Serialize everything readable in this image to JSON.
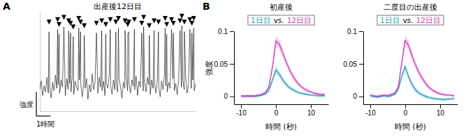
{
  "chart_data": [
    {
      "type": "line",
      "panel_label": "A",
      "title": "出産後12日目",
      "x": [
        0.0,
        0.1,
        0.2,
        0.3,
        0.4,
        0.5,
        0.6,
        0.65,
        0.7,
        0.8,
        0.9,
        1.0,
        1.1,
        1.2,
        1.26,
        1.3,
        1.36,
        1.4,
        1.5,
        1.6,
        1.7,
        1.8,
        1.9,
        2.0,
        2.04,
        2.1,
        2.17,
        2.2,
        2.3,
        2.36,
        2.4,
        2.5,
        2.6,
        2.7,
        2.75,
        2.8,
        2.88,
        2.9,
        3.0,
        3.1,
        3.14,
        3.2,
        3.3,
        3.4,
        3.5,
        3.6,
        3.7,
        3.8,
        3.9,
        4.0,
        4.1,
        4.2,
        4.3,
        4.37,
        4.4,
        4.5,
        4.6,
        4.66,
        4.7,
        4.8,
        4.9,
        4.98,
        5.0,
        5.1,
        5.2,
        5.3,
        5.37,
        5.4,
        5.5,
        5.55,
        5.6,
        5.7,
        5.8,
        5.9,
        6.0,
        6.02,
        6.1,
        6.2,
        6.21,
        6.29,
        6.3,
        6.4,
        6.5,
        6.6,
        6.68,
        6.7,
        6.8,
        6.9,
        7.0,
        7.1,
        7.2,
        7.3,
        7.33,
        7.4,
        7.5,
        7.6,
        7.7,
        7.73,
        7.8,
        7.9,
        8.0,
        8.07,
        8.1,
        8.2,
        8.3,
        8.38,
        8.4,
        8.5,
        8.6,
        8.7,
        8.8,
        8.85,
        8.9,
        8.96,
        9.0,
        9.1,
        9.2,
        9.3,
        9.4,
        9.43,
        9.5,
        9.6,
        9.7,
        9.8,
        9.9,
        10.0,
        10.03,
        10.1,
        10.2,
        10.21,
        10.3,
        10.4,
        10.5,
        10.6,
        10.7,
        10.74,
        10.8,
        10.87,
        10.9,
        11.0
      ],
      "series": [
        {
          "color": "#000000",
          "values": [
            0.38,
            0.45,
            0.33,
            0.41,
            0.36,
            0.48,
            0.35,
            0.86,
            0.4,
            0.31,
            0.44,
            0.37,
            0.5,
            0.39,
            0.88,
            0.42,
            0.84,
            0.35,
            0.46,
            0.4,
            0.9,
            0.33,
            0.47,
            0.38,
            0.87,
            0.43,
            0.85,
            0.36,
            0.49,
            0.82,
            0.34,
            0.45,
            0.4,
            0.37,
            0.89,
            0.46,
            0.86,
            0.41,
            0.32,
            0.44,
            0.83,
            0.39,
            0.47,
            0.3,
            0.42,
            0.36,
            0.51,
            0.38,
            0.44,
            0.85,
            0.35,
            0.48,
            0.4,
            0.87,
            0.37,
            0.45,
            0.33,
            0.84,
            0.43,
            0.39,
            0.5,
            0.88,
            0.41,
            0.34,
            0.46,
            0.38,
            0.86,
            0.42,
            0.36,
            0.89,
            0.47,
            0.4,
            0.31,
            0.44,
            0.39,
            0.87,
            0.48,
            0.37,
            0.84,
            0.86,
            0.43,
            0.35,
            0.46,
            0.41,
            0.88,
            0.38,
            0.49,
            0.33,
            0.45,
            0.4,
            0.85,
            0.37,
            0.9,
            0.44,
            0.36,
            0.48,
            0.42,
            0.83,
            0.34,
            0.46,
            0.39,
            0.87,
            0.43,
            0.35,
            0.47,
            0.86,
            0.4,
            0.32,
            0.45,
            0.38,
            0.5,
            0.89,
            0.41,
            0.84,
            0.36,
            0.44,
            0.39,
            0.88,
            0.47,
            0.85,
            0.37,
            0.43,
            0.34,
            0.46,
            0.87,
            0.4,
            0.91,
            0.45,
            0.38,
            0.86,
            0.49,
            0.35,
            0.42,
            0.88,
            0.39,
            0.85,
            0.46,
            0.89,
            0.37,
            0.43
          ]
        },
        {
          "type": "scatter",
          "marker": "triangle",
          "color": "#000000",
          "x": [
            0.65,
            1.26,
            1.36,
            1.7,
            2.04,
            2.17,
            2.36,
            2.75,
            2.88,
            3.14,
            4.0,
            4.37,
            4.66,
            4.98,
            5.37,
            5.55,
            6.02,
            6.21,
            6.29,
            6.68,
            7.2,
            7.33,
            7.73,
            8.07,
            8.38,
            8.85,
            8.96,
            9.3,
            9.43,
            9.9,
            10.03,
            10.21,
            10.6,
            10.74,
            10.87
          ],
          "values": [
            0.92,
            0.94,
            0.9,
            0.96,
            0.93,
            0.91,
            0.88,
            0.95,
            0.92,
            0.89,
            0.91,
            0.93,
            0.9,
            0.94,
            0.92,
            0.95,
            0.93,
            0.9,
            0.92,
            0.94,
            0.91,
            0.96,
            0.89,
            0.93,
            0.92,
            0.95,
            0.9,
            0.94,
            0.91,
            0.93,
            0.97,
            0.92,
            0.94,
            0.91,
            0.95
          ]
        }
      ],
      "xlim": [
        0,
        11
      ],
      "ylim": [
        0.2,
        1.02
      ],
      "tick_labels": false,
      "scale_bars": {
        "x": 1,
        "x_label": "1時間",
        "y": 0.2,
        "y_label": "強度"
      }
    },
    {
      "type": "line",
      "panel_label": "B",
      "title": "初産後",
      "annotation": "vs.",
      "xlabel": "時間 (秒)",
      "ylabel": "強度",
      "x": [
        -10,
        -9,
        -8,
        -7,
        -6,
        -5,
        -4,
        -3,
        -2,
        -1,
        0,
        1,
        2,
        3,
        4,
        5,
        6,
        7,
        8,
        9,
        10,
        11,
        12,
        13,
        14
      ],
      "series": [
        {
          "name": "1日目",
          "color": "#29a3c4",
          "values": [
            0.0,
            0.001,
            0.0,
            0.001,
            0.0,
            0.001,
            0.002,
            0.004,
            0.009,
            0.025,
            0.041,
            0.034,
            0.025,
            0.018,
            0.013,
            0.01,
            0.007,
            0.005,
            0.004,
            0.003,
            0.002,
            0.002,
            0.001,
            0.001,
            0.001
          ],
          "error": [
            0.002,
            0.002,
            0.002,
            0.002,
            0.002,
            0.002,
            0.002,
            0.002,
            0.003,
            0.004,
            0.006,
            0.005,
            0.004,
            0.004,
            0.003,
            0.003,
            0.003,
            0.002,
            0.002,
            0.002,
            0.002,
            0.002,
            0.002,
            0.002,
            0.002
          ]
        },
        {
          "name": "12日目",
          "color": "#d63cbf",
          "values": [
            0.001,
            0.0,
            0.001,
            0.0,
            0.001,
            0.002,
            0.003,
            0.006,
            0.015,
            0.045,
            0.085,
            0.08,
            0.066,
            0.052,
            0.04,
            0.03,
            0.022,
            0.016,
            0.012,
            0.009,
            0.007,
            0.005,
            0.004,
            0.003,
            0.003
          ],
          "error": [
            0.002,
            0.002,
            0.002,
            0.002,
            0.002,
            0.002,
            0.002,
            0.002,
            0.003,
            0.005,
            0.007,
            0.007,
            0.006,
            0.005,
            0.005,
            0.004,
            0.004,
            0.003,
            0.003,
            0.003,
            0.002,
            0.002,
            0.002,
            0.002,
            0.002
          ]
        }
      ],
      "xlim": [
        -12,
        15
      ],
      "ylim": [
        -0.012,
        0.1
      ],
      "xticks": [
        -10,
        0,
        10
      ],
      "yticks": [
        0,
        0.05,
        0.1
      ]
    },
    {
      "type": "line",
      "title": "二度目の出産後",
      "annotation": "vs.",
      "xlabel": "時間 (秒)",
      "x": [
        -10,
        -9,
        -8,
        -7,
        -6,
        -5,
        -4,
        -3,
        -2,
        -1,
        0,
        1,
        2,
        3,
        4,
        5,
        6,
        7,
        8,
        9,
        10,
        11,
        12,
        13,
        14
      ],
      "series": [
        {
          "name": "1日目",
          "color": "#29a3c4",
          "values": [
            0.001,
            0.0,
            -0.001,
            0.0,
            0.001,
            0.0,
            0.001,
            0.003,
            0.01,
            0.03,
            0.046,
            0.03,
            0.018,
            0.01,
            0.005,
            0.002,
            0.0,
            -0.002,
            -0.003,
            -0.004,
            -0.004,
            -0.005,
            -0.004,
            -0.004,
            -0.003
          ],
          "error": [
            0.002,
            0.002,
            0.002,
            0.002,
            0.002,
            0.002,
            0.002,
            0.002,
            0.003,
            0.004,
            0.006,
            0.005,
            0.004,
            0.004,
            0.003,
            0.003,
            0.003,
            0.002,
            0.002,
            0.002,
            0.002,
            0.002,
            0.002,
            0.002,
            0.002
          ]
        },
        {
          "name": "12日目",
          "color": "#d63cbf",
          "values": [
            0.002,
            0.001,
            0.0,
            0.001,
            0.002,
            0.001,
            0.003,
            0.005,
            0.014,
            0.05,
            0.086,
            0.078,
            0.062,
            0.048,
            0.036,
            0.027,
            0.019,
            0.013,
            0.009,
            0.006,
            0.004,
            0.003,
            0.002,
            0.002,
            0.001
          ],
          "error": [
            0.002,
            0.002,
            0.002,
            0.002,
            0.002,
            0.002,
            0.002,
            0.002,
            0.003,
            0.005,
            0.007,
            0.007,
            0.006,
            0.005,
            0.005,
            0.004,
            0.004,
            0.003,
            0.003,
            0.003,
            0.002,
            0.002,
            0.002,
            0.002,
            0.002
          ]
        }
      ],
      "xlim": [
        -12,
        15
      ],
      "ylim": [
        -0.012,
        0.1
      ],
      "xticks": [
        -10,
        0,
        10
      ],
      "yticks": [
        0,
        0.05,
        0.1
      ]
    }
  ]
}
